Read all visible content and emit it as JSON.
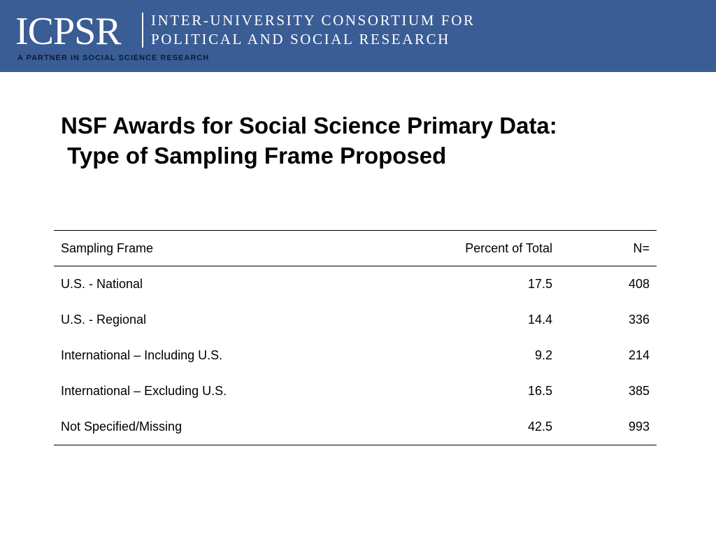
{
  "header": {
    "logo_text": "ICPSR",
    "org_line1": "INTER-UNIVERSITY CONSORTIUM FOR",
    "org_line2": "POLITICAL AND SOCIAL RESEARCH",
    "tagline": "A PARTNER IN SOCIAL SCIENCE RESEARCH",
    "banner_color": "#3a5d95"
  },
  "slide": {
    "title_line1": "NSF Awards for Social Science Primary Data:",
    "title_line2": " Type of Sampling Frame Proposed"
  },
  "table": {
    "headers": [
      "Sampling Frame",
      "Percent of Total",
      "N="
    ],
    "rows": [
      [
        "U.S. - National",
        "17.5",
        "408"
      ],
      [
        "U.S. - Regional",
        "14.4",
        "336"
      ],
      [
        "International – Including U.S.",
        "9.2",
        "214"
      ],
      [
        "International – Excluding U.S.",
        "16.5",
        "385"
      ],
      [
        "Not Specified/Missing",
        "42.5",
        "993"
      ]
    ]
  }
}
